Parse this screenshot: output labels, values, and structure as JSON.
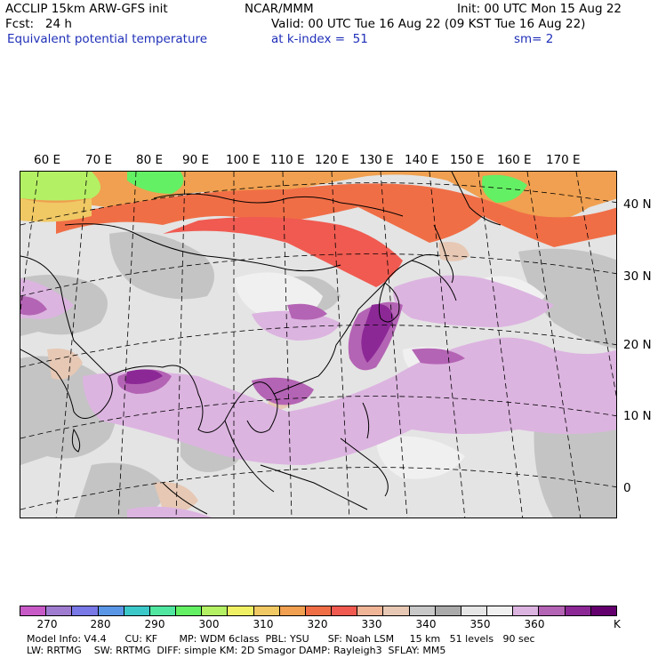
{
  "header": {
    "model": "ACCLIP 15km ARW-GFS init",
    "org": "NCAR/MMM",
    "init": "Init: 00 UTC Mon 15 Aug 22",
    "fcst": "Fcst:   24 h",
    "valid": "Valid: 00 UTC Tue 16 Aug 22 (09 KST Tue 16 Aug 22)",
    "field": "Equivalent potential temperature",
    "level": "at k-index =  51",
    "smoothing": "sm= 2"
  },
  "map": {
    "lon_labels": [
      "60 E",
      "70 E",
      "80 E",
      "90 E",
      "100 E",
      "110 E",
      "120 E",
      "130 E",
      "140 E",
      "150 E",
      "160 E",
      "170 E"
    ],
    "lat_labels": [
      "40 N",
      "30 N",
      "20 N",
      "10 N",
      "0"
    ]
  },
  "colorbar": {
    "ticks": [
      "270",
      "280",
      "290",
      "300",
      "310",
      "320",
      "330",
      "340",
      "350",
      "360"
    ],
    "unit": "K",
    "colors": [
      "#c85ac8",
      "#a07cd0",
      "#7878e6",
      "#5a96e6",
      "#3cc8c8",
      "#50e6a0",
      "#64f064",
      "#b4f064",
      "#f0f064",
      "#f0c864",
      "#f0a050",
      "#f06e46",
      "#f05a50",
      "#f0b496",
      "#e6c8b4",
      "#c8c8c8",
      "#aaaaaa",
      "#e6e6e6",
      "#f0f0f0",
      "#dcb4e0",
      "#b464b4",
      "#8c2896",
      "#64006e"
    ]
  },
  "footer": {
    "line1": "Model Info: V4.4      CU: KF       MP: WDM 6class  PBL: YSU      SF: Noah LSM     15 km   51 levels   90 sec",
    "line2": "LW: RRTMG    SW: RRTMG  DIFF: simple KM: 2D Smagor DAMP: Rayleigh3  SFLAY: MM5"
  }
}
